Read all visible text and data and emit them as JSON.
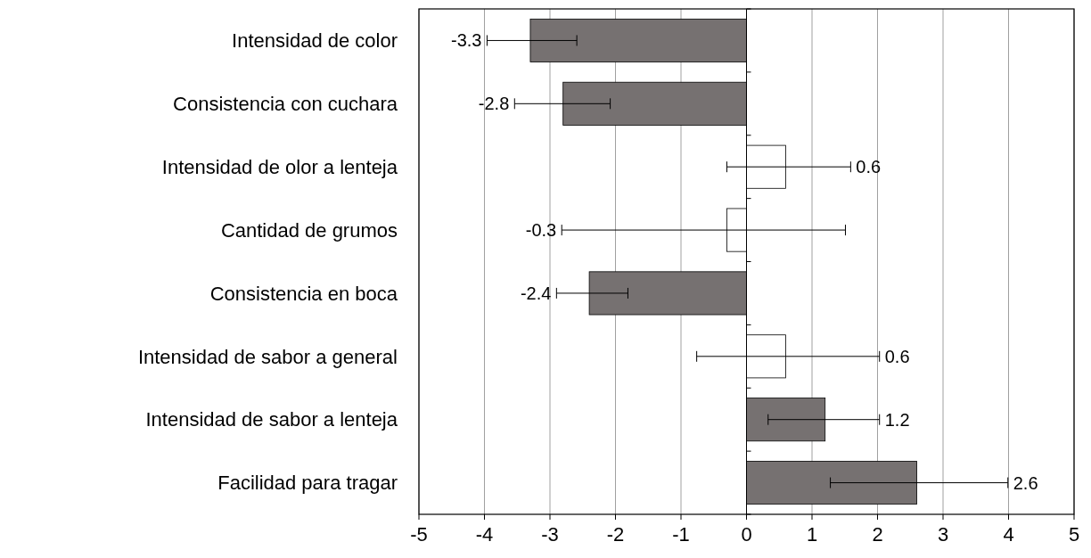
{
  "chart_data": {
    "type": "bar",
    "orientation": "horizontal",
    "categories": [
      "Intensidad de color",
      "Consistencia con cuchara",
      "Intensidad de olor a lenteja",
      "Cantidad de grumos",
      "Consistencia en  boca",
      "Intensidad de sabor a  general",
      "Intensidad de sabor a lenteja",
      "Facilidad para tragar"
    ],
    "values": [
      -3.3,
      -2.8,
      0.6,
      -0.3,
      -2.4,
      0.6,
      1.2,
      2.6
    ],
    "colors": [
      "#767171",
      "#767171",
      "#ffffff",
      "#ffffff",
      "#767171",
      "#ffffff",
      "#767171",
      "#767171"
    ],
    "errors": [
      [
        -3.96,
        -2.59
      ],
      [
        -3.54,
        -2.08
      ],
      [
        -0.3,
        1.59
      ],
      [
        -2.82,
        1.51
      ],
      [
        -2.9,
        -1.81
      ],
      [
        -0.76,
        2.03
      ],
      [
        0.33,
        2.03
      ],
      [
        1.28,
        3.99
      ]
    ],
    "annotations": [
      {
        "text": "-3.3",
        "x": -3.96,
        "y": "Intensidad de color"
      },
      {
        "text": "-2.8",
        "x": -3.54,
        "y": "Consistencia con cuchara"
      },
      {
        "text": "0.6",
        "x": 1.59,
        "y": "Intensidad de olor a lenteja"
      },
      {
        "text": "-0.3",
        "x": -2.82,
        "y": "Cantidad de grumos"
      },
      {
        "text": "-2.4",
        "x": -2.9,
        "y": "Consistencia en  boca"
      },
      {
        "text": "0.6",
        "x": 2.03,
        "y": "Intensidad de sabor a  general"
      },
      {
        "text": "1.2",
        "x": 2.03,
        "y": "Intensidad de sabor a lenteja"
      },
      {
        "text": "2.6",
        "x": 3.99,
        "y": "Facilidad para tragar"
      }
    ],
    "xlim": [
      -5,
      5
    ],
    "xticks": [
      -5,
      -4,
      -3,
      -2,
      -1,
      0,
      1,
      2,
      3,
      4,
      5
    ],
    "grid": "x"
  }
}
